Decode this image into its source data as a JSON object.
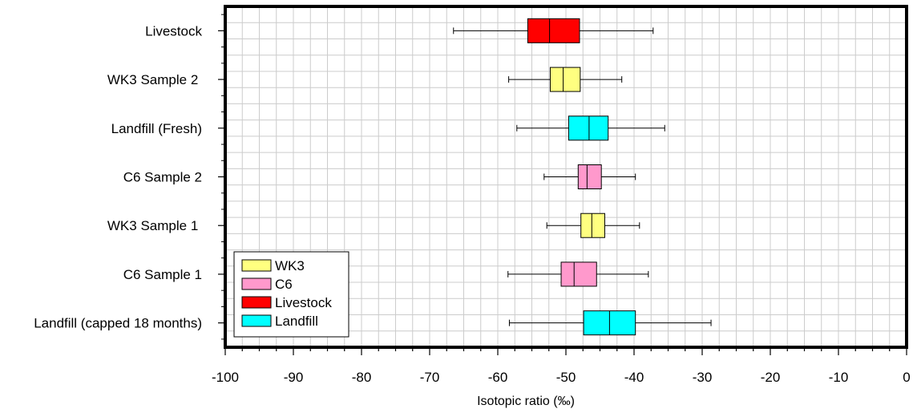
{
  "chart_data": {
    "type": "boxplot",
    "orientation": "horizontal",
    "xlabel": "Isotopic ratio (‰)",
    "xlim": [
      -100,
      0
    ],
    "xticks": [
      -100,
      -90,
      -80,
      -70,
      -60,
      -50,
      -40,
      -30,
      -20,
      -10,
      0
    ],
    "grid": true,
    "legend_position": "bottom-left",
    "categories": [
      "Livestock",
      "WK3 Sample 2 ",
      "Landfill (Fresh)",
      "C6 Sample 2",
      "WK3 Sample 1 ",
      "C6 Sample 1",
      "Landfill (capped 18 months)"
    ],
    "boxes": [
      {
        "category": "Livestock",
        "group": "Livestock",
        "min": -66.5,
        "q1": -55.6,
        "median": -52.4,
        "q3": -48.0,
        "max": -37.2
      },
      {
        "category": "WK3 Sample 2 ",
        "group": "WK3",
        "min": -58.4,
        "q1": -52.3,
        "median": -50.4,
        "q3": -47.9,
        "max": -41.8
      },
      {
        "category": "Landfill (Fresh)",
        "group": "Landfill",
        "min": -57.2,
        "q1": -49.6,
        "median": -46.6,
        "q3": -43.8,
        "max": -35.5
      },
      {
        "category": "C6 Sample 2",
        "group": "C6",
        "min": -53.2,
        "q1": -48.2,
        "median": -46.9,
        "q3": -44.8,
        "max": -39.8
      },
      {
        "category": "WK3 Sample 1 ",
        "group": "WK3",
        "min": -52.8,
        "q1": -47.8,
        "median": -46.2,
        "q3": -44.3,
        "max": -39.2
      },
      {
        "category": "C6 Sample 1",
        "group": "C6",
        "min": -58.5,
        "q1": -50.7,
        "median": -48.8,
        "q3": -45.5,
        "max": -37.9
      },
      {
        "category": "Landfill (capped 18 months)",
        "group": "Landfill",
        "min": -58.3,
        "q1": -47.4,
        "median": -43.6,
        "q3": -39.8,
        "max": -28.7
      }
    ],
    "legend": [
      {
        "name": "WK3",
        "color": "#ffff80"
      },
      {
        "name": "C6",
        "color": "#ff99cc"
      },
      {
        "name": "Livestock",
        "color": "#ff0000"
      },
      {
        "name": "Landfill",
        "color": "#00ffff"
      }
    ]
  }
}
